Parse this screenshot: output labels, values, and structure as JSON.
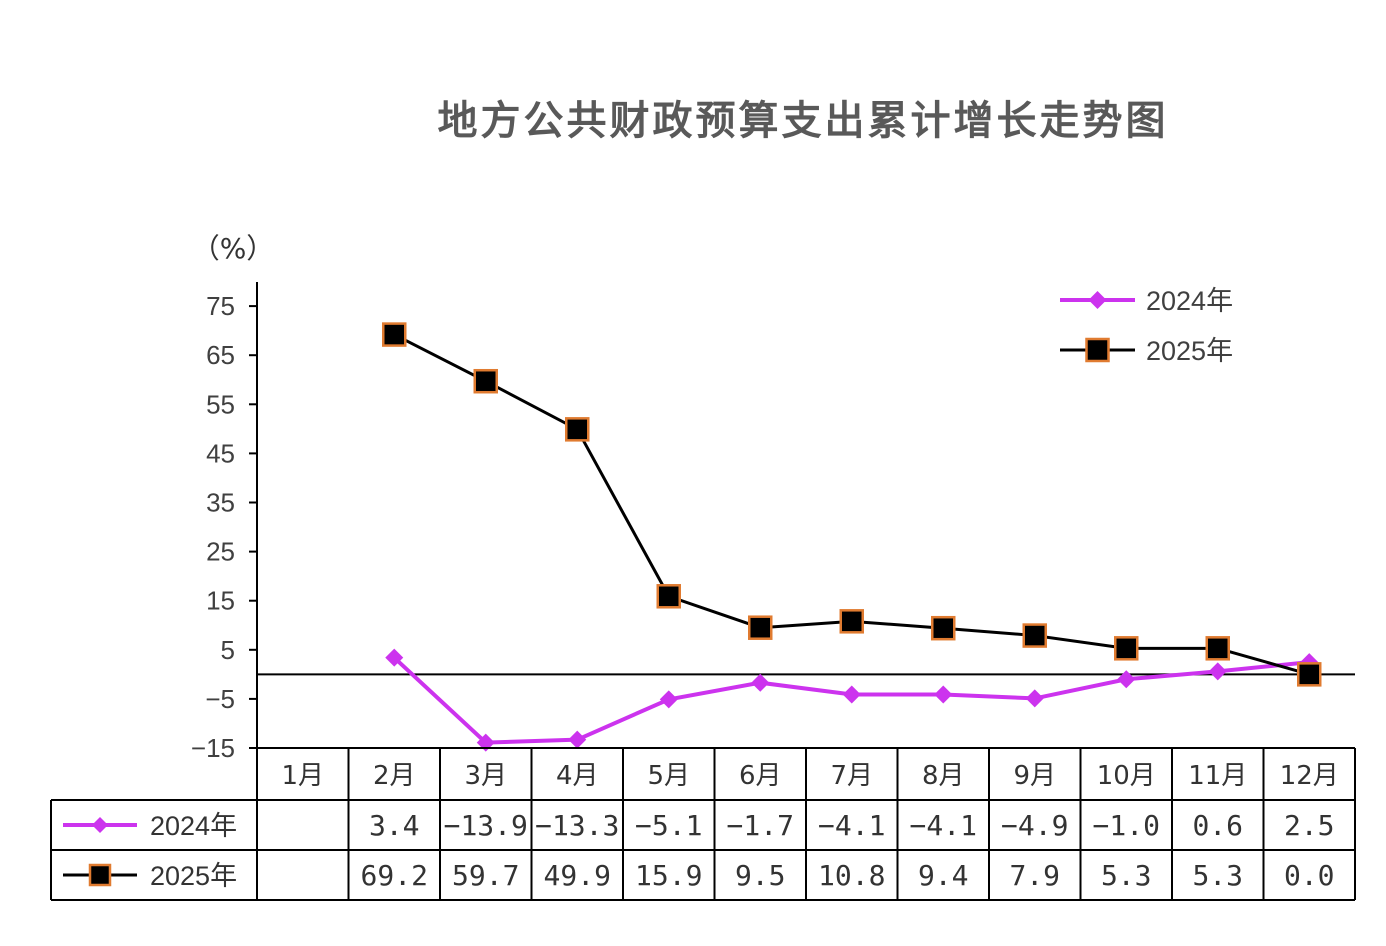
{
  "chart_data": {
    "type": "line",
    "title": "地方公共财政预算支出累计增长走势图",
    "ylabel": "（%）",
    "ylim": [
      -15,
      80
    ],
    "yticks": [
      75,
      65,
      55,
      45,
      35,
      25,
      15,
      5,
      -5,
      -15
    ],
    "categories": [
      "1月",
      "2月",
      "3月",
      "4月",
      "5月",
      "6月",
      "7月",
      "8月",
      "9月",
      "10月",
      "11月",
      "12月"
    ],
    "legend_position": "top-right",
    "series": [
      {
        "name": "2024年",
        "color": "#CC33EE",
        "marker": "diamond",
        "values": [
          null,
          3.4,
          -13.9,
          -13.3,
          -5.1,
          -1.7,
          -4.1,
          -4.1,
          -4.9,
          -1.0,
          0.6,
          2.5
        ],
        "labels": [
          "",
          "3.4",
          "−13.9",
          "−13.3",
          "−5.1",
          "−1.7",
          "−4.1",
          "−4.1",
          "−4.9",
          "−1.0",
          "0.6",
          "2.5"
        ]
      },
      {
        "name": "2025年",
        "color": "#000000",
        "marker_edge_color": "#E07B30",
        "marker": "square",
        "values": [
          null,
          69.2,
          59.7,
          49.9,
          15.9,
          9.5,
          10.8,
          9.4,
          7.9,
          5.3,
          5.3,
          0.0
        ],
        "labels": [
          "",
          "69.2",
          "59.7",
          "49.9",
          "15.9",
          "9.5",
          "10.8",
          "9.4",
          "7.9",
          "5.3",
          "5.3",
          "0.0"
        ]
      }
    ],
    "grid": false,
    "data_table": true
  }
}
